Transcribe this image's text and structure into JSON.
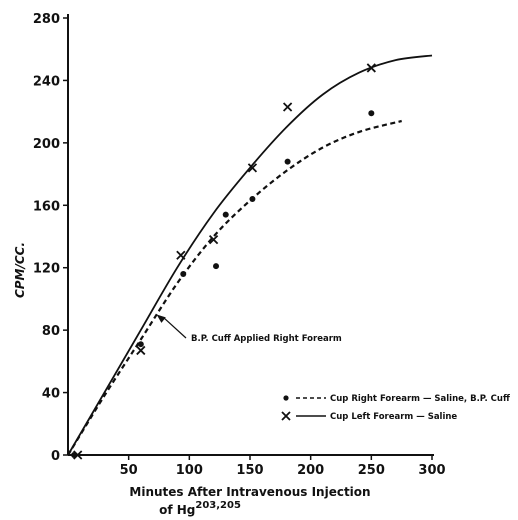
{
  "chart_data": {
    "type": "scatter",
    "xlabel": "Minutes After Intravenous Injection",
    "xlabel_line2_prefix": "of Hg",
    "xlabel_line2_super": "203,205",
    "ylabel": "CPM/CC.",
    "xlim": [
      0,
      300
    ],
    "ylim": [
      0,
      280
    ],
    "x_ticks": [
      50,
      100,
      150,
      200,
      250,
      300
    ],
    "y_ticks": [
      0,
      40,
      80,
      120,
      160,
      200,
      240,
      280
    ],
    "x_tick_labels": [
      "50",
      "100",
      "150",
      "200",
      "250",
      "300"
    ],
    "y_tick_labels": [
      "0",
      "40",
      "80",
      "120",
      "160",
      "200",
      "240",
      "280"
    ],
    "grid": false,
    "legend_position": "lower-right",
    "series": [
      {
        "name": "Cup Right Forearm — Saline, B.P. Cuff",
        "marker": "dot",
        "line_style": "dashed",
        "points": [
          [
            5,
            0
          ],
          [
            60,
            71
          ],
          [
            95,
            116
          ],
          [
            122,
            121
          ],
          [
            130,
            154
          ],
          [
            152,
            164
          ],
          [
            181,
            188
          ],
          [
            250,
            219
          ]
        ],
        "curve": [
          [
            0,
            0
          ],
          [
            30,
            38
          ],
          [
            60,
            74
          ],
          [
            90,
            110
          ],
          [
            120,
            140
          ],
          [
            150,
            163
          ],
          [
            180,
            182
          ],
          [
            210,
            197
          ],
          [
            240,
            207
          ],
          [
            275,
            214
          ]
        ]
      },
      {
        "name": "Cup Left Forearm — Saline",
        "marker": "x",
        "line_style": "solid",
        "points": [
          [
            8,
            0
          ],
          [
            60,
            67
          ],
          [
            93,
            128
          ],
          [
            120,
            138
          ],
          [
            152,
            184
          ],
          [
            181,
            223
          ],
          [
            250,
            248
          ]
        ],
        "curve": [
          [
            0,
            0
          ],
          [
            30,
            40
          ],
          [
            60,
            80
          ],
          [
            90,
            120
          ],
          [
            120,
            155
          ],
          [
            150,
            184
          ],
          [
            180,
            210
          ],
          [
            210,
            231
          ],
          [
            240,
            245
          ],
          [
            270,
            253
          ],
          [
            300,
            256
          ]
        ]
      }
    ],
    "annotation": {
      "text": "B.P. Cuff Applied Right Forearm",
      "arrow_to": [
        73,
        90
      ]
    }
  }
}
